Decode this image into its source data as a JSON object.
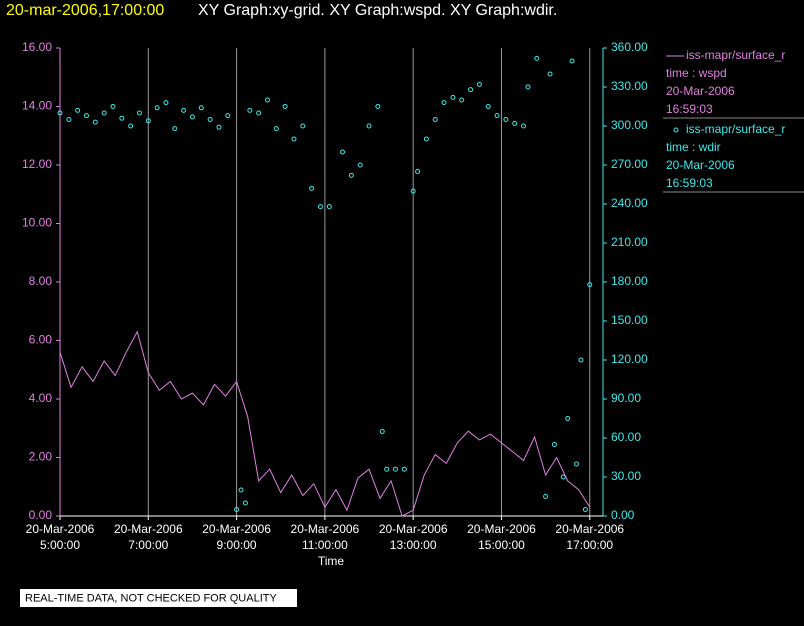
{
  "chart_data": {
    "type": "line-scatter",
    "title_time": "20-mar-2006,17:00:00",
    "title": "XY Graph:xy-grid.  XY Graph:wspd.  XY Graph:wdir.",
    "xlabel": "Time",
    "footer": "REAL-TIME DATA, NOT CHECKED FOR QUALITY",
    "xlim": [
      5,
      17.3
    ],
    "xticks": [
      {
        "value": 5,
        "label": [
          "20-Mar-2006",
          "5:00:00"
        ]
      },
      {
        "value": 7,
        "label": [
          "20-Mar-2006",
          "7:00:00"
        ]
      },
      {
        "value": 9,
        "label": [
          "20-Mar-2006",
          "9:00:00"
        ]
      },
      {
        "value": 11,
        "label": [
          "20-Mar-2006",
          "11:00:00"
        ]
      },
      {
        "value": 13,
        "label": [
          "20-Mar-2006",
          "13:00:00"
        ]
      },
      {
        "value": 15,
        "label": [
          "20-Mar-2006",
          "15:00:00"
        ]
      },
      {
        "value": 17,
        "label": [
          "20-Mar-2006",
          "17:00:00"
        ]
      }
    ],
    "ylim": [
      0,
      16
    ],
    "yticks": [
      {
        "value": 0,
        "label": "0.00"
      },
      {
        "value": 2,
        "label": "2.00"
      },
      {
        "value": 4,
        "label": "4.00"
      },
      {
        "value": 6,
        "label": "6.00"
      },
      {
        "value": 8,
        "label": "8.00"
      },
      {
        "value": 10,
        "label": "10.00"
      },
      {
        "value": 12,
        "label": "12.00"
      },
      {
        "value": 14,
        "label": "14.00"
      },
      {
        "value": 16,
        "label": "16.00"
      }
    ],
    "y2lim": [
      0,
      360
    ],
    "y2ticks": [
      {
        "value": 0,
        "label": "0.00"
      },
      {
        "value": 30,
        "label": "30.00"
      },
      {
        "value": 60,
        "label": "60.00"
      },
      {
        "value": 90,
        "label": "90.00"
      },
      {
        "value": 120,
        "label": "120.00"
      },
      {
        "value": 150,
        "label": "150.00"
      },
      {
        "value": 180,
        "label": "180.00"
      },
      {
        "value": 210,
        "label": "210.00"
      },
      {
        "value": 240,
        "label": "240.00"
      },
      {
        "value": 270,
        "label": "270.00"
      },
      {
        "value": 300,
        "label": "300.00"
      },
      {
        "value": 330,
        "label": "330.00"
      },
      {
        "value": 360,
        "label": "360.00"
      }
    ],
    "grid": true,
    "series": [
      {
        "name": "iss-mapr/surface_r",
        "legend_lines": [
          "time : wspd",
          "20-Mar-2006",
          "16:59:03"
        ],
        "type": "line",
        "axis": "y",
        "color": "#e080e0",
        "x": [
          5.0,
          5.25,
          5.5,
          5.75,
          6.0,
          6.25,
          6.5,
          6.75,
          7.0,
          7.25,
          7.5,
          7.75,
          8.0,
          8.25,
          8.5,
          8.75,
          9.0,
          9.25,
          9.5,
          9.75,
          10.0,
          10.25,
          10.5,
          10.75,
          11.0,
          11.25,
          11.5,
          11.75,
          12.0,
          12.25,
          12.5,
          12.75,
          13.0,
          13.25,
          13.5,
          13.75,
          14.0,
          14.25,
          14.5,
          14.75,
          15.0,
          15.25,
          15.5,
          15.75,
          16.0,
          16.25,
          16.5,
          16.75,
          17.0
        ],
        "values": [
          5.6,
          4.4,
          5.1,
          4.6,
          5.3,
          4.8,
          5.6,
          6.3,
          4.9,
          4.3,
          4.6,
          4.0,
          4.2,
          3.8,
          4.5,
          4.1,
          4.6,
          3.4,
          1.2,
          1.6,
          0.8,
          1.4,
          0.7,
          1.1,
          0.3,
          0.9,
          0.2,
          1.3,
          1.6,
          0.6,
          1.2,
          0.0,
          0.2,
          1.4,
          2.1,
          1.8,
          2.5,
          2.9,
          2.6,
          2.8,
          2.5,
          2.2,
          1.9,
          2.7,
          1.4,
          2.0,
          1.2,
          0.9,
          0.3
        ]
      },
      {
        "name": "iss-mapr/surface_r",
        "legend_lines": [
          "time : wdir",
          "20-Mar-2006",
          "16:59:03"
        ],
        "type": "scatter",
        "axis": "y2",
        "color": "#40e8e8",
        "x": [
          5.0,
          5.2,
          5.4,
          5.6,
          5.8,
          6.0,
          6.2,
          6.4,
          6.6,
          6.8,
          7.0,
          7.2,
          7.4,
          7.6,
          7.8,
          8.0,
          8.2,
          8.4,
          8.6,
          8.8,
          9.0,
          9.1,
          9.2,
          9.3,
          9.5,
          9.7,
          9.9,
          10.1,
          10.3,
          10.5,
          10.7,
          10.9,
          11.1,
          11.4,
          11.6,
          11.8,
          12.0,
          12.2,
          12.3,
          12.4,
          12.6,
          12.8,
          13.0,
          13.1,
          13.3,
          13.5,
          13.7,
          13.9,
          14.1,
          14.3,
          14.5,
          14.7,
          14.9,
          15.1,
          15.3,
          15.5,
          15.6,
          15.8,
          16.0,
          16.1,
          16.2,
          16.4,
          16.5,
          16.6,
          16.7,
          16.8,
          16.9,
          17.0
        ],
        "values": [
          310,
          305,
          312,
          308,
          303,
          310,
          315,
          306,
          300,
          310,
          304,
          314,
          318,
          298,
          312,
          307,
          314,
          305,
          299,
          308,
          5,
          20,
          10,
          312,
          310,
          320,
          298,
          315,
          290,
          300,
          252,
          238,
          238,
          280,
          262,
          270,
          300,
          315,
          65,
          36,
          36,
          36,
          250,
          265,
          290,
          305,
          318,
          322,
          320,
          328,
          332,
          315,
          308,
          305,
          302,
          300,
          330,
          352,
          15,
          340,
          55,
          30,
          75,
          350,
          40,
          120,
          5,
          178
        ]
      }
    ]
  }
}
